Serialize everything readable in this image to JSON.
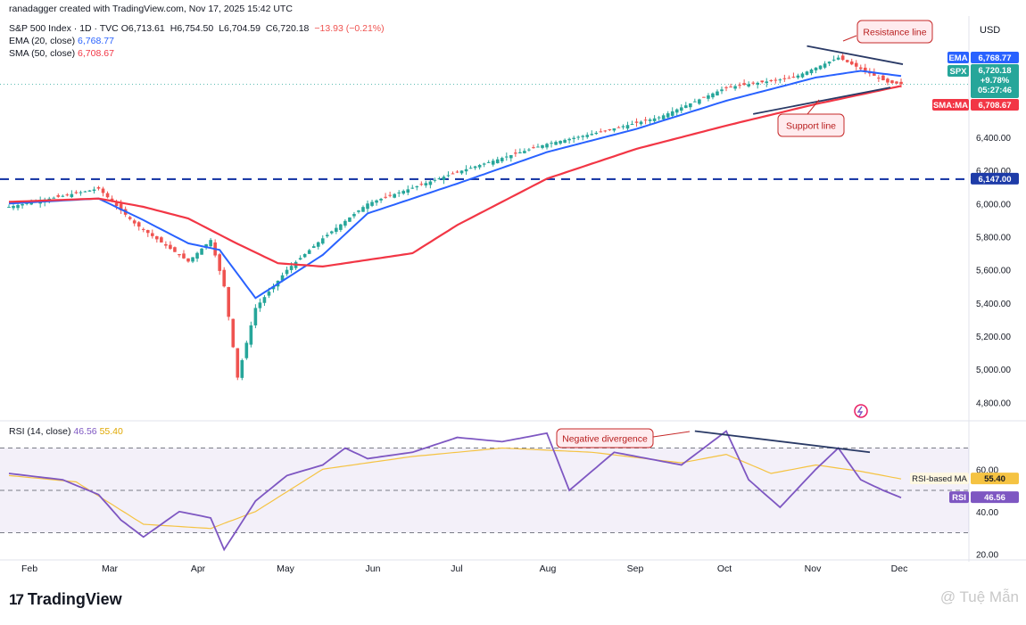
{
  "header": {
    "credit": "ranadagger created with TradingView.com, Nov 17, 2025 15:42 UTC",
    "symbol_line": "S&P 500 Index · 1D · TVC",
    "ohlc": [
      "O6,713.61",
      "H6,754.50",
      "L6,704.59",
      "C6,720.18",
      "−13.93 (−0.21%)"
    ],
    "ema_label": "EMA (20, close)",
    "ema_value": "6,768.77",
    "sma_label": "SMA (50, close)",
    "sma_value": "6,708.67",
    "rsi_label": "RSI (14, close)",
    "rsi_value": "46.56",
    "rsi_ma_value": "55.40"
  },
  "currency": "USD",
  "badges": {
    "ema": {
      "label": "EMA",
      "value": "6,768.77"
    },
    "spx": {
      "label": "SPX",
      "value": "6,720.18",
      "change": "+9.78%",
      "timer": "05:27:46"
    },
    "sma": {
      "label": "SMA:MA",
      "value": "6,708.67"
    },
    "level": {
      "value": "6,147.00"
    },
    "rsi_ma": {
      "label": "RSI-based MA",
      "value": "55.40"
    },
    "rsi": {
      "label": "RSI",
      "value": "46.56"
    }
  },
  "annotations": {
    "resistance": "Resistance line",
    "support": "Support line",
    "divergence": "Negative divergence"
  },
  "footer": {
    "logo": "TradingView",
    "watermark": "@ Tuệ Mẫn"
  },
  "colors": {
    "up": "#26a69a",
    "down": "#ef5350",
    "ema": "#2962ff",
    "sma": "#f23645",
    "rsi": "#7e57c2",
    "rsi_ma": "#f5c342",
    "level": "#1e3ca8",
    "trend": "#2a3a66"
  },
  "chart_data": [
    {
      "type": "candlestick",
      "title": "S&P 500 Index · 1D · TVC",
      "x_ticks": [
        "Feb",
        "Mar",
        "Apr",
        "May",
        "Jun",
        "Jul",
        "Aug",
        "Sep",
        "Oct",
        "Nov",
        "Dec"
      ],
      "y_ticks": [
        "6,400.00",
        "6,200.00",
        "6,000.00",
        "5,800.00",
        "5,600.00",
        "5,400.00",
        "5,200.00",
        "5,000.00",
        "4,800.00"
      ],
      "ylim": [
        4700,
        7120
      ],
      "horizontal_level": 6147,
      "series": [
        {
          "name": "SPX",
          "key_points": [
            [
              0,
              5980
            ],
            [
              20,
              6090
            ],
            [
              28,
              5880
            ],
            [
              40,
              5650
            ],
            [
              45,
              5780
            ],
            [
              48,
              5500
            ],
            [
              51,
              4950
            ],
            [
              55,
              5370
            ],
            [
              62,
              5600
            ],
            [
              70,
              5790
            ],
            [
              80,
              6000
            ],
            [
              100,
              6190
            ],
            [
              120,
              6360
            ],
            [
              130,
              6420
            ],
            [
              145,
              6520
            ],
            [
              160,
              6700
            ],
            [
              175,
              6760
            ],
            [
              185,
              6880
            ],
            [
              196,
              6730
            ],
            [
              199,
              6720
            ]
          ]
        },
        {
          "name": "EMA (20, close)",
          "key_points": [
            [
              0,
              6000
            ],
            [
              20,
              6030
            ],
            [
              30,
              5900
            ],
            [
              40,
              5760
            ],
            [
              47,
              5720
            ],
            [
              55,
              5430
            ],
            [
              62,
              5550
            ],
            [
              70,
              5690
            ],
            [
              80,
              5940
            ],
            [
              100,
              6120
            ],
            [
              120,
              6310
            ],
            [
              140,
              6450
            ],
            [
              160,
              6620
            ],
            [
              180,
              6760
            ],
            [
              190,
              6800
            ],
            [
              199,
              6769
            ]
          ]
        },
        {
          "name": "SMA (50, close)",
          "key_points": [
            [
              0,
              6010
            ],
            [
              20,
              6030
            ],
            [
              30,
              5980
            ],
            [
              40,
              5910
            ],
            [
              50,
              5770
            ],
            [
              60,
              5640
            ],
            [
              70,
              5620
            ],
            [
              90,
              5700
            ],
            [
              100,
              5870
            ],
            [
              120,
              6150
            ],
            [
              140,
              6330
            ],
            [
              160,
              6470
            ],
            [
              180,
              6600
            ],
            [
              199,
              6709
            ]
          ]
        }
      ],
      "annotations": [
        "Resistance line",
        "Support line"
      ]
    },
    {
      "type": "line",
      "title": "RSI (14, close)",
      "y_ticks": [
        "60.00",
        "40.00",
        "20.00"
      ],
      "ylim": [
        18,
        82
      ],
      "reference_lines": [
        70,
        50,
        30
      ],
      "series": [
        {
          "name": "RSI",
          "key_points": [
            [
              0,
              58
            ],
            [
              12,
              55
            ],
            [
              20,
              48
            ],
            [
              25,
              36
            ],
            [
              30,
              28
            ],
            [
              38,
              40
            ],
            [
              45,
              37
            ],
            [
              48,
              22
            ],
            [
              55,
              45
            ],
            [
              62,
              57
            ],
            [
              70,
              62
            ],
            [
              75,
              70
            ],
            [
              80,
              65
            ],
            [
              90,
              68
            ],
            [
              100,
              75
            ],
            [
              110,
              73
            ],
            [
              120,
              77
            ],
            [
              125,
              50
            ],
            [
              135,
              68
            ],
            [
              150,
              62
            ],
            [
              160,
              78
            ],
            [
              165,
              55
            ],
            [
              172,
              42
            ],
            [
              180,
              60
            ],
            [
              185,
              70
            ],
            [
              190,
              55
            ],
            [
              195,
              50
            ],
            [
              199,
              46.56
            ]
          ]
        },
        {
          "name": "RSI-based MA",
          "key_points": [
            [
              0,
              57
            ],
            [
              15,
              54
            ],
            [
              30,
              34
            ],
            [
              45,
              32
            ],
            [
              55,
              40
            ],
            [
              70,
              60
            ],
            [
              90,
              66
            ],
            [
              110,
              70
            ],
            [
              130,
              68
            ],
            [
              150,
              63
            ],
            [
              160,
              67
            ],
            [
              170,
              58
            ],
            [
              180,
              62
            ],
            [
              190,
              59
            ],
            [
              199,
              55.4
            ]
          ]
        }
      ],
      "annotations": [
        "Negative divergence"
      ]
    }
  ]
}
